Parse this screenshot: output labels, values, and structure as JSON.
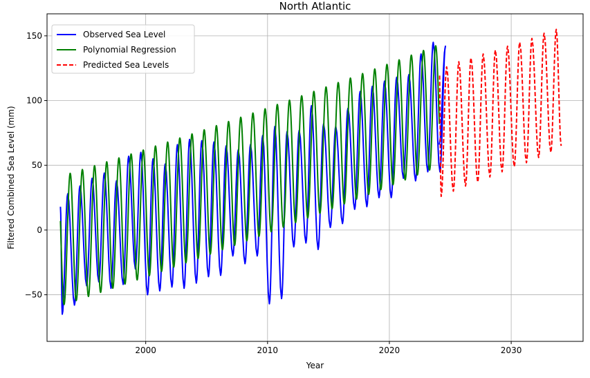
{
  "chart_data": {
    "type": "line",
    "title": "North Atlantic",
    "xlabel": "Year",
    "ylabel": "Filtered Combined Sea Level (mm)",
    "xlim": [
      1991.9,
      2035.9
    ],
    "ylim": [
      -86,
      167
    ],
    "xticks": [
      2000,
      2010,
      2020,
      2030
    ],
    "xtick_labels": [
      "2000",
      "2010",
      "2020",
      "2030"
    ],
    "yticks": [
      -50,
      0,
      50,
      100,
      150
    ],
    "ytick_labels": [
      "−50",
      "0",
      "50",
      "100",
      "150"
    ],
    "grid": true,
    "legend_position": "top-left",
    "series": [
      {
        "name": "Observed Sea Level",
        "color": "#0000ff",
        "dash": "solid",
        "start": [
          1993.0,
          18
        ],
        "x_range": [
          1993.0,
          2024.1
        ],
        "cycle_peaks": [
          28,
          34,
          40,
          44,
          38,
          57,
          60,
          55,
          51,
          66,
          70,
          69,
          68,
          65,
          62,
          66,
          73,
          80,
          76,
          77,
          96,
          82,
          80,
          94,
          107,
          111,
          115,
          118,
          120,
          136,
          145,
          142
        ],
        "cycle_troughs": [
          -65,
          -58,
          -43,
          -40,
          -45,
          -42,
          -30,
          -50,
          -47,
          -44,
          -45,
          -41,
          -36,
          -35,
          -20,
          -26,
          -20,
          -57,
          -53,
          -13,
          -10,
          -15,
          2,
          5,
          16,
          18,
          25,
          25,
          40,
          38,
          45,
          45
        ],
        "end": [
          2024.1,
          66
        ]
      },
      {
        "name": "Polynomial Regression",
        "color": "#008000",
        "dash": "solid",
        "x_range": [
          1993.0,
          2024.1
        ],
        "poly_coefficients": [
          -8.5,
          3.0,
          0.012
        ],
        "x_origin": 1993,
        "seasonal_amplitude_start": 50,
        "seasonal_amplitude_end": 47,
        "period_years": 1.0,
        "phase_peak_year_fraction": 0.8
      },
      {
        "name": "Predicted Sea Levels",
        "color": "#ff0000",
        "dash": "dashed",
        "x_range": [
          2024.1,
          2034.1
        ],
        "cycle_peaks": [
          126,
          130,
          133,
          136,
          139,
          142,
          145,
          148,
          152,
          155
        ],
        "cycle_troughs": [
          26,
          30,
          34,
          37,
          41,
          45,
          49,
          52,
          56,
          60
        ],
        "end": [
          2034.1,
          65
        ]
      }
    ]
  }
}
